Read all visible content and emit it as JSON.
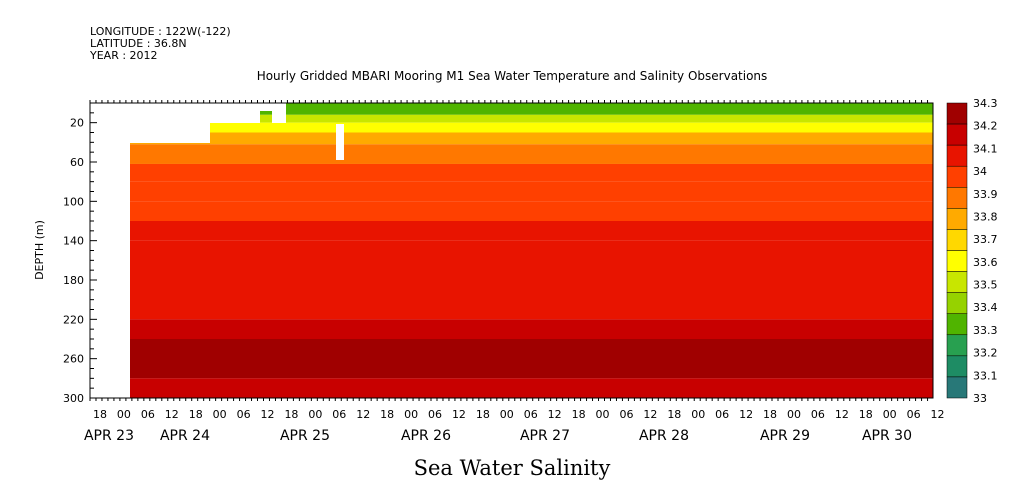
{
  "meta_lines": {
    "longitude": "LONGITUDE : 122W(-122)",
    "latitude": "LATITUDE : 36.8N",
    "year": "YEAR : 2012"
  },
  "chart_data": {
    "type": "heatmap",
    "title": "Hourly Gridded MBARI Mooring M1 Sea Water Temperature and Salinity Observations",
    "variable_label": "Sea Water Salinity",
    "ylabel": "DEPTH (m)",
    "y_axis_inverted": true,
    "ylim": [
      300,
      0
    ],
    "y_ticks": [
      20,
      60,
      100,
      140,
      180,
      220,
      260,
      300
    ],
    "x_hour_ticks": [
      "18",
      "00",
      "06",
      "12",
      "18",
      "00",
      "06",
      "12",
      "18",
      "00",
      "06",
      "12",
      "18",
      "00",
      "06",
      "12",
      "18",
      "00",
      "06",
      "12",
      "18",
      "00",
      "06",
      "12",
      "18",
      "00",
      "06",
      "12",
      "18",
      "00",
      "06",
      "12",
      "18",
      "00",
      "06",
      "12"
    ],
    "x_date_labels": [
      "APR 23",
      "APR 24",
      "APR 25",
      "APR 26",
      "APR 27",
      "APR 28",
      "APR 29",
      "APR 30"
    ],
    "colorbar": {
      "labels": [
        "34.3",
        "34.2",
        "34.1",
        "34",
        "33.9",
        "33.8",
        "33.7",
        "33.6",
        "33.5",
        "33.4",
        "33.3",
        "33.2",
        "33.1",
        "33"
      ],
      "levels": [
        34.3,
        34.2,
        34.1,
        34.0,
        33.9,
        33.8,
        33.7,
        33.6,
        33.5,
        33.4,
        33.3,
        33.2,
        33.1,
        33.0
      ],
      "colors": [
        "#a00000",
        "#c80000",
        "#e81400",
        "#ff4000",
        "#ff7800",
        "#ffaa00",
        "#ffd800",
        "#ffff00",
        "#c8e600",
        "#96d200",
        "#50b400",
        "#28a050",
        "#1e8c64",
        "#287878"
      ]
    },
    "bands": [
      {
        "depth": [
          0,
          12
        ],
        "salinity": 33.25
      },
      {
        "depth": [
          12,
          20
        ],
        "salinity": 33.45
      },
      {
        "depth": [
          20,
          30
        ],
        "salinity": 33.6
      },
      {
        "depth": [
          30,
          42
        ],
        "salinity": 33.75
      },
      {
        "depth": [
          42,
          62
        ],
        "salinity": 33.85
      },
      {
        "depth": [
          62,
          80
        ],
        "salinity": 33.95
      },
      {
        "depth": [
          80,
          100
        ],
        "salinity": 34.0
      },
      {
        "depth": [
          100,
          120
        ],
        "salinity": 34.05
      },
      {
        "depth": [
          120,
          140
        ],
        "salinity": 34.1
      },
      {
        "depth": [
          140,
          180
        ],
        "salinity": 34.15
      },
      {
        "depth": [
          180,
          220
        ],
        "salinity": 34.15
      },
      {
        "depth": [
          220,
          240
        ],
        "salinity": 34.2
      },
      {
        "depth": [
          240,
          280
        ],
        "salinity": 34.25
      },
      {
        "depth": [
          280,
          300
        ],
        "salinity": 34.2
      }
    ],
    "grid": false,
    "colorbar_placement": "right"
  }
}
